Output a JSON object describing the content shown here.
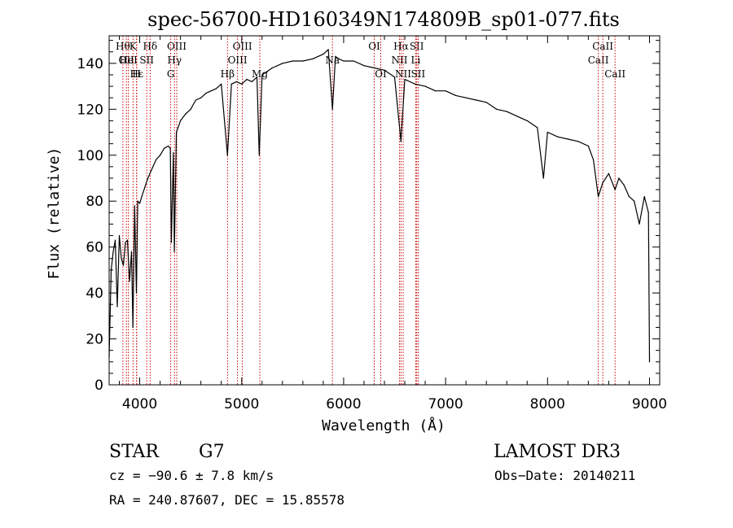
{
  "chart_data": {
    "type": "line",
    "title": "spec-56700-HD160349N174809B_sp01-077.fits",
    "xlabel": "Wavelength (Å)",
    "ylabel": "Flux (relative)",
    "xlim": [
      3700,
      9100
    ],
    "ylim": [
      0,
      152
    ],
    "xticks": [
      4000,
      5000,
      6000,
      7000,
      8000,
      9000
    ],
    "yticks": [
      0,
      20,
      40,
      60,
      80,
      100,
      120,
      140
    ],
    "x_minor_step": 200,
    "y_minor_step": 5,
    "grid": false,
    "series": [
      {
        "color": "#000000",
        "x": [
          3700,
          3720,
          3740,
          3760,
          3780,
          3800,
          3820,
          3840,
          3860,
          3880,
          3900,
          3920,
          3933,
          3950,
          3968,
          3980,
          4000,
          4020,
          4050,
          4080,
          4100,
          4130,
          4160,
          4200,
          4240,
          4280,
          4300,
          4310,
          4330,
          4340,
          4360,
          4400,
          4450,
          4500,
          4550,
          4600,
          4650,
          4700,
          4750,
          4800,
          4861,
          4900,
          4950,
          5000,
          5050,
          5100,
          5150,
          5172,
          5200,
          5300,
          5400,
          5500,
          5600,
          5700,
          5800,
          5850,
          5890,
          5920,
          5950,
          6000,
          6100,
          6200,
          6300,
          6400,
          6500,
          6562,
          6600,
          6700,
          6800,
          6900,
          7000,
          7100,
          7200,
          7300,
          7400,
          7500,
          7600,
          7700,
          7800,
          7900,
          7960,
          8000,
          8100,
          8200,
          8300,
          8400,
          8450,
          8498,
          8542,
          8600,
          8662,
          8700,
          8750,
          8800,
          8850,
          8900,
          8950,
          8990,
          9000
        ],
        "y": [
          12,
          50,
          58,
          63,
          34,
          65,
          55,
          52,
          62,
          63,
          45,
          58,
          25,
          78,
          40,
          80,
          79,
          82,
          86,
          90,
          92,
          95,
          98,
          100,
          103,
          104,
          103,
          62,
          101,
          58,
          110,
          115,
          118,
          120,
          124,
          125,
          127,
          128,
          129,
          131,
          100,
          131,
          132,
          131,
          133,
          132,
          134,
          100,
          135,
          138,
          140,
          141,
          141,
          142,
          144,
          146,
          120,
          143,
          142,
          141,
          141,
          139,
          138,
          137,
          134,
          106,
          133,
          131,
          130,
          128,
          128,
          126,
          125,
          124,
          123,
          120,
          119,
          117,
          115,
          112,
          90,
          110,
          108,
          107,
          106,
          104,
          98,
          82,
          88,
          92,
          85,
          90,
          87,
          82,
          80,
          70,
          82,
          75,
          10
        ]
      }
    ],
    "line_markers": [
      {
        "wavelength": 3835,
        "label": "Hθ",
        "row": 0
      },
      {
        "wavelength": 3869,
        "label": "OII",
        "row": 1
      },
      {
        "wavelength": 3889,
        "label": "HeI",
        "row": 1
      },
      {
        "wavelength": 3934,
        "label": "K",
        "row": 0
      },
      {
        "wavelength": 3969,
        "label": "H",
        "row": 2
      },
      {
        "wavelength": 3970,
        "label": "Hε",
        "row": 2
      },
      {
        "wavelength": 4069,
        "label": "SII",
        "row": 1
      },
      {
        "wavelength": 4102,
        "label": "Hδ",
        "row": 0
      },
      {
        "wavelength": 4304,
        "label": "G",
        "row": 2
      },
      {
        "wavelength": 4341,
        "label": "Hγ",
        "row": 1
      },
      {
        "wavelength": 4363,
        "label": "OIII",
        "row": 0
      },
      {
        "wavelength": 4861,
        "label": "Hβ",
        "row": 2
      },
      {
        "wavelength": 4959,
        "label": "OIII",
        "row": 1
      },
      {
        "wavelength": 5007,
        "label": "OIII",
        "row": 0
      },
      {
        "wavelength": 5178,
        "label": "Mg",
        "row": 2
      },
      {
        "wavelength": 5890,
        "label": "Na",
        "row": 1
      },
      {
        "wavelength": 6300,
        "label": "OI",
        "row": 0
      },
      {
        "wavelength": 6364,
        "label": "OI",
        "row": 2
      },
      {
        "wavelength": 6548,
        "label": "NII",
        "row": 1
      },
      {
        "wavelength": 6563,
        "label": "Hα",
        "row": 0
      },
      {
        "wavelength": 6584,
        "label": "NII",
        "row": 2
      },
      {
        "wavelength": 6707,
        "label": "Li",
        "row": 1
      },
      {
        "wavelength": 6717,
        "label": "SII",
        "row": 0
      },
      {
        "wavelength": 6731,
        "label": "SII",
        "row": 2
      },
      {
        "wavelength": 8498,
        "label": "CaII",
        "row": 1
      },
      {
        "wavelength": 8542,
        "label": "CaII",
        "row": 0
      },
      {
        "wavelength": 8662,
        "label": "CaII",
        "row": 2
      }
    ],
    "marker_color": "#cc0000"
  },
  "info": {
    "object_type": "STAR",
    "subclass": "G7",
    "survey": "LAMOST DR3",
    "velocity": "cz = −90.6 ± 7.8 km/s",
    "obs_date": "Obs−Date: 20140211",
    "coords": "RA = 240.87607, DEC =  15.85578"
  }
}
